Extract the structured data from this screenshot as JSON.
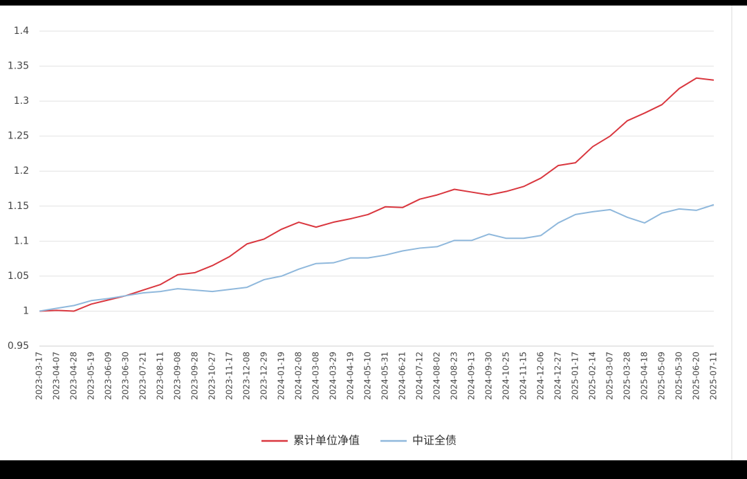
{
  "chart_data": {
    "type": "line",
    "categories": [
      "2023-03-17",
      "2023-04-07",
      "2023-04-28",
      "2023-05-19",
      "2023-06-09",
      "2023-06-30",
      "2023-07-21",
      "2023-08-11",
      "2023-09-08",
      "2023-09-28",
      "2023-10-27",
      "2023-11-17",
      "2023-12-08",
      "2023-12-29",
      "2024-01-19",
      "2024-02-08",
      "2024-03-08",
      "2024-03-29",
      "2024-04-19",
      "2024-05-10",
      "2024-05-31",
      "2024-06-21",
      "2024-07-12",
      "2024-08-02",
      "2024-08-23",
      "2024-09-13",
      "2024-09-30",
      "2024-10-25",
      "2024-11-15",
      "2024-12-06",
      "2024-12-27",
      "2025-01-17",
      "2025-02-14",
      "2025-03-07",
      "2025-03-28",
      "2025-04-18",
      "2025-05-09",
      "2025-05-30",
      "2025-06-20",
      "2025-07-11"
    ],
    "series": [
      {
        "name": "累计单位净值",
        "color": "#d9363e",
        "values": [
          1.0,
          1.001,
          1.0,
          1.01,
          1.016,
          1.022,
          1.03,
          1.038,
          1.052,
          1.055,
          1.065,
          1.078,
          1.096,
          1.103,
          1.117,
          1.127,
          1.12,
          1.127,
          1.132,
          1.138,
          1.149,
          1.148,
          1.16,
          1.166,
          1.174,
          1.17,
          1.166,
          1.171,
          1.178,
          1.19,
          1.208,
          1.212,
          1.235,
          1.25,
          1.272,
          1.283,
          1.295,
          1.318,
          1.333,
          1.33
        ]
      },
      {
        "name": "中证全债",
        "color": "#8fb8dc",
        "values": [
          1.0,
          1.004,
          1.008,
          1.015,
          1.018,
          1.022,
          1.026,
          1.028,
          1.032,
          1.03,
          1.028,
          1.031,
          1.034,
          1.045,
          1.05,
          1.06,
          1.068,
          1.069,
          1.076,
          1.076,
          1.08,
          1.086,
          1.09,
          1.092,
          1.101,
          1.101,
          1.11,
          1.104,
          1.104,
          1.108,
          1.126,
          1.138,
          1.142,
          1.145,
          1.134,
          1.126,
          1.14,
          1.146,
          1.144,
          1.152
        ]
      }
    ],
    "ylim": [
      0.95,
      1.4
    ],
    "yticks": [
      0.95,
      1,
      1.05,
      1.1,
      1.15,
      1.2,
      1.25,
      1.3,
      1.35,
      1.4
    ],
    "grid": true
  }
}
